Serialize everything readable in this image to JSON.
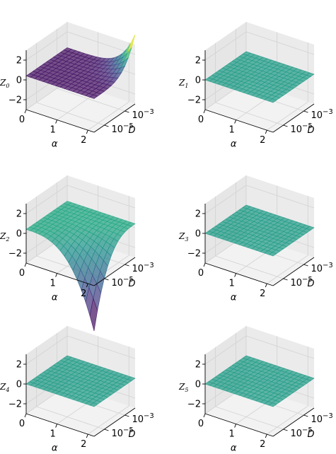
{
  "chart_data": [
    {
      "type": "surface",
      "zlabel": "Z",
      "zsub": "0",
      "xlabel": "α",
      "ylabel": "D",
      "x_ticks": [
        "0",
        "1",
        "2"
      ],
      "y_ticks": [
        "10",
        "10"
      ],
      "y_tick_exps": [
        "−5",
        "−3"
      ],
      "z_ticks": [
        "−2",
        "0",
        "2"
      ],
      "xlim": [
        0,
        2.2
      ],
      "ylim_log10": [
        -6,
        -2
      ],
      "zlim": [
        -3,
        3
      ],
      "surface": {
        "model": "bowl",
        "base": 0.4,
        "amp": 3.6,
        "colormap": "viridis"
      }
    },
    {
      "type": "surface",
      "zlabel": "Z",
      "zsub": "1",
      "xlabel": "α",
      "ylabel": "D",
      "x_ticks": [
        "0",
        "1",
        "2"
      ],
      "y_ticks": [
        "10",
        "10"
      ],
      "y_tick_exps": [
        "−5",
        "−3"
      ],
      "z_ticks": [
        "−2",
        "0",
        "2"
      ],
      "xlim": [
        0,
        2.2
      ],
      "ylim_log10": [
        -6,
        -2
      ],
      "zlim": [
        -3,
        3
      ],
      "surface": {
        "model": "flat",
        "base": 0.0,
        "amp": 0.0,
        "colormap": "viridis"
      }
    },
    {
      "type": "surface",
      "zlabel": "Z",
      "zsub": "2",
      "xlabel": "α",
      "ylabel": "D",
      "x_ticks": [
        "0",
        "1",
        "2"
      ],
      "y_ticks": [
        "10",
        "10"
      ],
      "y_tick_exps": [
        "−5",
        "−3"
      ],
      "z_ticks": [
        "−2",
        "0",
        "2"
      ],
      "xlim": [
        0,
        2.2
      ],
      "ylim_log10": [
        -6,
        -2
      ],
      "zlim": [
        -3,
        3
      ],
      "surface": {
        "model": "dome",
        "base": 0.4,
        "amp": -4.2,
        "colormap": "viridis"
      }
    },
    {
      "type": "surface",
      "zlabel": "Z",
      "zsub": "3",
      "xlabel": "α",
      "ylabel": "D",
      "x_ticks": [
        "0",
        "1",
        "2"
      ],
      "y_ticks": [
        "10",
        "10"
      ],
      "y_tick_exps": [
        "−5",
        "−3"
      ],
      "z_ticks": [
        "−2",
        "0",
        "2"
      ],
      "xlim": [
        0,
        2.2
      ],
      "ylim_log10": [
        -6,
        -2
      ],
      "zlim": [
        -3,
        3
      ],
      "surface": {
        "model": "flat",
        "base": 0.0,
        "amp": 0.0,
        "colormap": "viridis"
      }
    },
    {
      "type": "surface",
      "zlabel": "Z",
      "zsub": "4",
      "xlabel": "α",
      "ylabel": "D",
      "x_ticks": [
        "0",
        "1",
        "2"
      ],
      "y_ticks": [
        "10",
        "10"
      ],
      "y_tick_exps": [
        "−5",
        "−3"
      ],
      "z_ticks": [
        "−2",
        "0",
        "2"
      ],
      "xlim": [
        0,
        2.2
      ],
      "ylim_log10": [
        -6,
        -2
      ],
      "zlim": [
        -3,
        3
      ],
      "surface": {
        "model": "flat",
        "base": 0.0,
        "amp": 0.0,
        "colormap": "viridis"
      }
    },
    {
      "type": "surface",
      "zlabel": "Z",
      "zsub": "5",
      "xlabel": "α",
      "ylabel": "D",
      "x_ticks": [
        "0",
        "1",
        "2"
      ],
      "y_ticks": [
        "10",
        "10"
      ],
      "y_tick_exps": [
        "−5",
        "−3"
      ],
      "z_ticks": [
        "−2",
        "0",
        "2"
      ],
      "xlim": [
        0,
        2.2
      ],
      "ylim_log10": [
        -6,
        -2
      ],
      "zlim": [
        -3,
        3
      ],
      "surface": {
        "model": "flat",
        "base": 0.0,
        "amp": 0.0,
        "colormap": "viridis"
      }
    }
  ]
}
